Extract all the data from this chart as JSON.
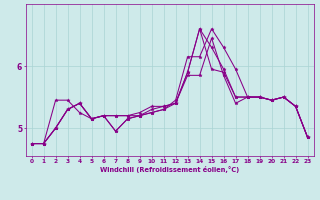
{
  "xlabel": "Windchill (Refroidissement éolien,°C)",
  "x_ticks": [
    0,
    1,
    2,
    3,
    4,
    5,
    6,
    7,
    8,
    9,
    10,
    11,
    12,
    13,
    14,
    15,
    16,
    17,
    18,
    19,
    20,
    21,
    22,
    23
  ],
  "ylim": [
    4.55,
    7.0
  ],
  "yticks": [
    5,
    6
  ],
  "background_color": "#ceeaea",
  "line_color": "#880088",
  "grid_color": "#aad4d4",
  "series": [
    [
      4.75,
      4.75,
      5.0,
      5.3,
      5.4,
      5.15,
      5.2,
      5.2,
      5.2,
      5.2,
      5.3,
      5.35,
      5.4,
      5.85,
      5.85,
      6.45,
      5.85,
      5.4,
      5.5,
      5.5,
      5.45,
      5.5,
      5.35,
      4.85
    ],
    [
      4.75,
      4.75,
      5.45,
      5.45,
      5.25,
      5.15,
      5.2,
      5.2,
      5.2,
      5.25,
      5.35,
      5.35,
      5.4,
      5.9,
      6.6,
      5.95,
      5.9,
      5.5,
      5.5,
      5.5,
      5.45,
      5.5,
      5.35,
      4.85
    ],
    [
      4.75,
      4.75,
      5.0,
      5.3,
      5.4,
      5.15,
      5.2,
      4.95,
      5.15,
      5.2,
      5.25,
      5.3,
      5.4,
      5.9,
      6.6,
      6.3,
      5.95,
      5.5,
      5.5,
      5.5,
      5.45,
      5.5,
      5.35,
      4.85
    ],
    [
      4.75,
      4.75,
      5.0,
      5.3,
      5.4,
      5.15,
      5.2,
      4.95,
      5.15,
      5.2,
      5.25,
      5.3,
      5.45,
      6.15,
      6.15,
      6.6,
      6.3,
      5.95,
      5.5,
      5.5,
      5.45,
      5.5,
      5.35,
      4.85
    ]
  ]
}
